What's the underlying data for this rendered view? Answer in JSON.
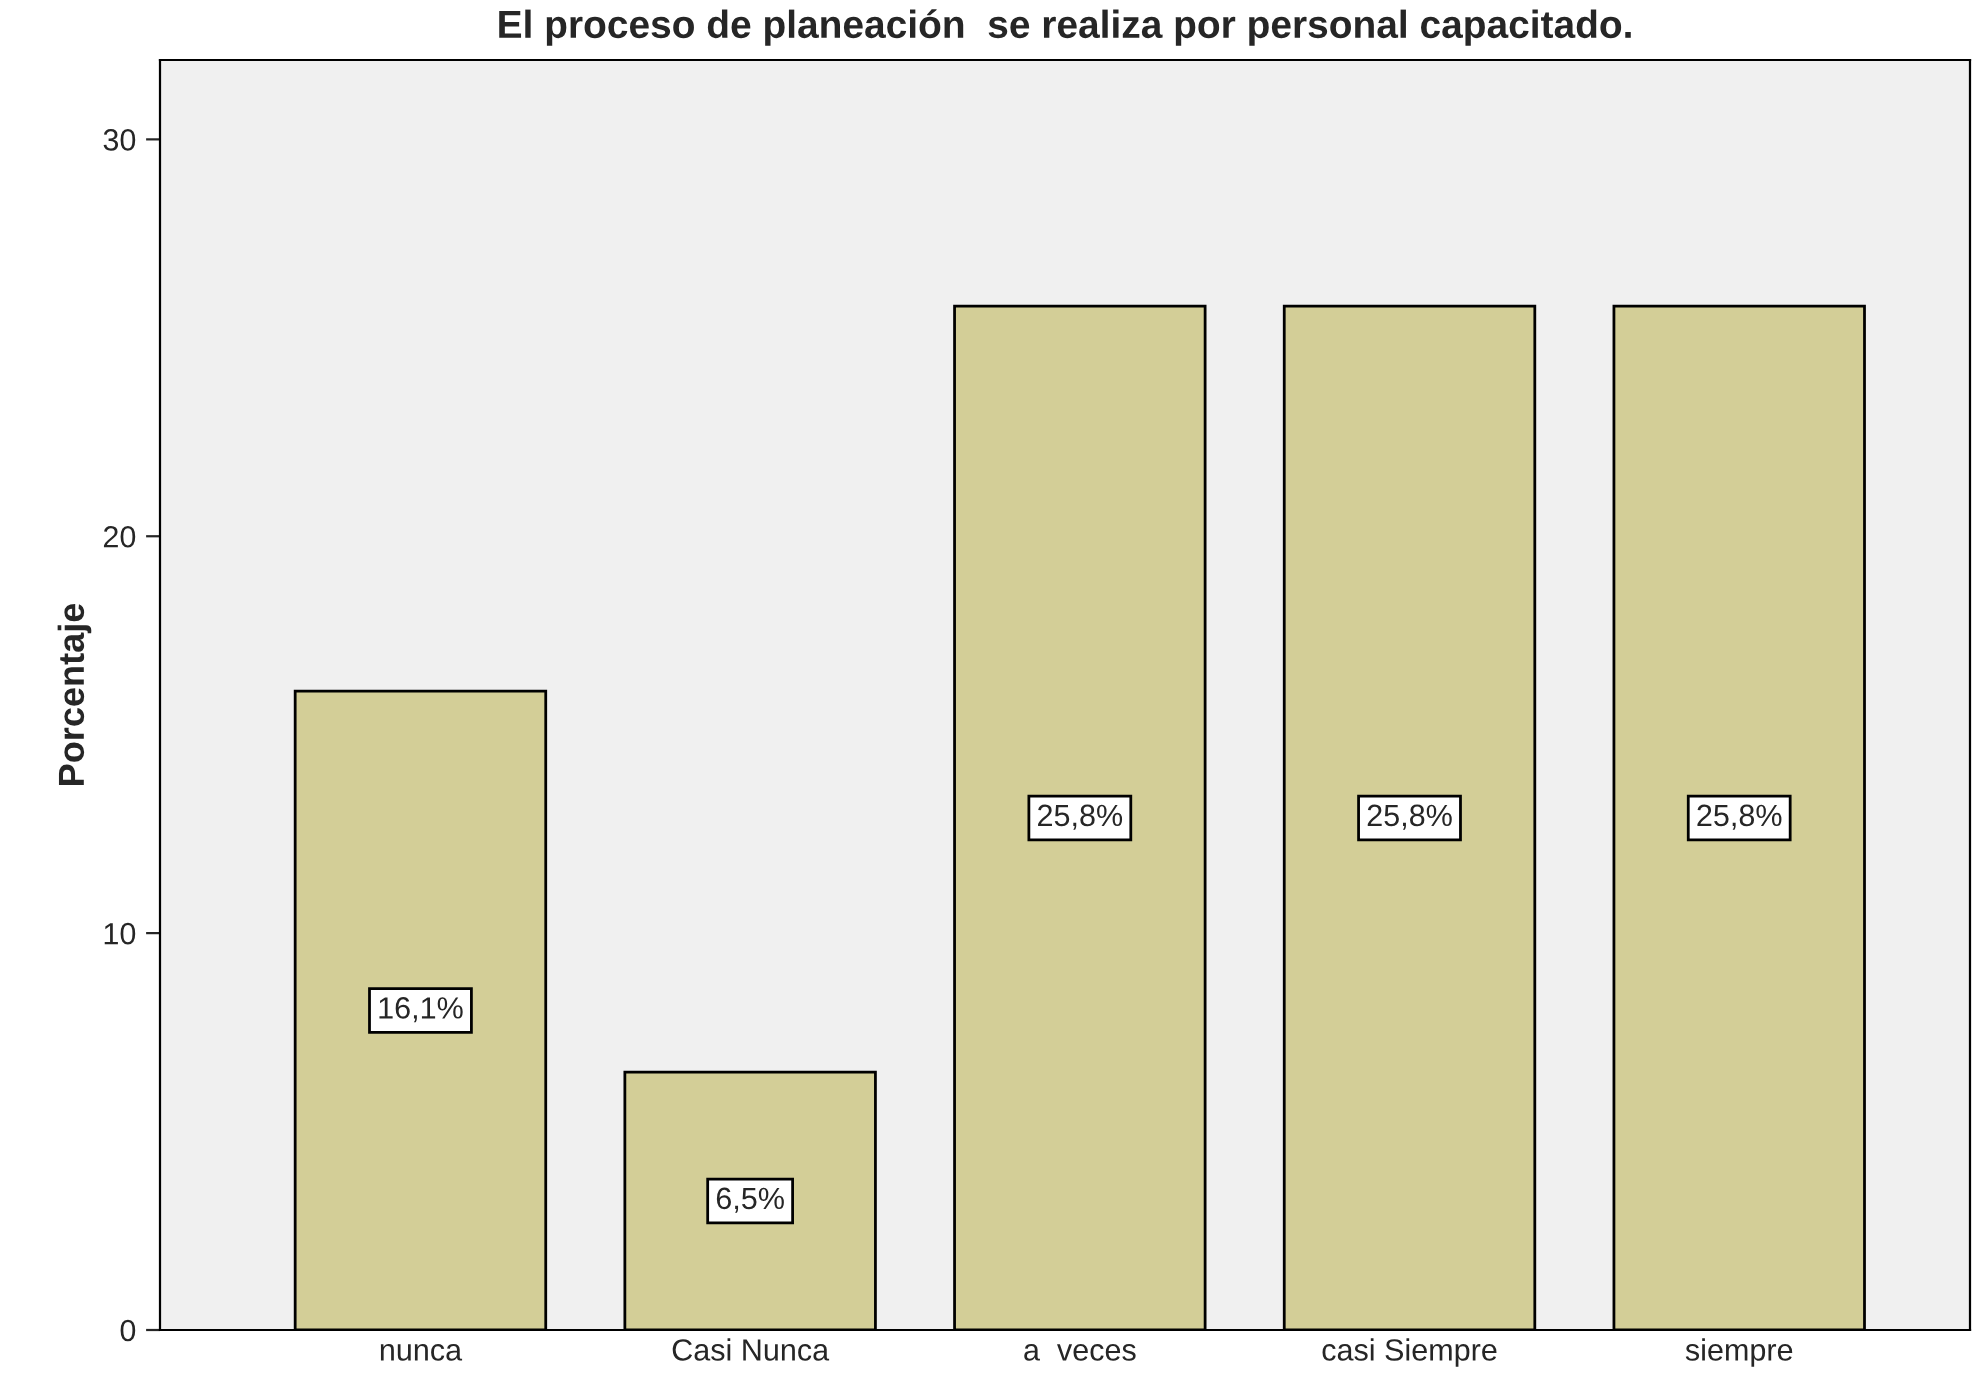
{
  "chart_data": {
    "type": "bar",
    "title": "El proceso de planeación  se realiza por personal capacitado.",
    "ylabel": "Porcentaje",
    "categories": [
      "nunca",
      "Casi Nunca",
      "a  veces",
      "casi Siempre",
      "siempre"
    ],
    "values": [
      16.1,
      6.5,
      25.8,
      25.8,
      25.8
    ],
    "value_labels": [
      "16,1%",
      "6,5%",
      "25,8%",
      "25,8%",
      "25,8%"
    ],
    "color": "#d3ce97",
    "ylim": [
      0,
      32
    ],
    "yticks": [
      0,
      10,
      20,
      30
    ],
    "grid": false,
    "legend": false
  }
}
